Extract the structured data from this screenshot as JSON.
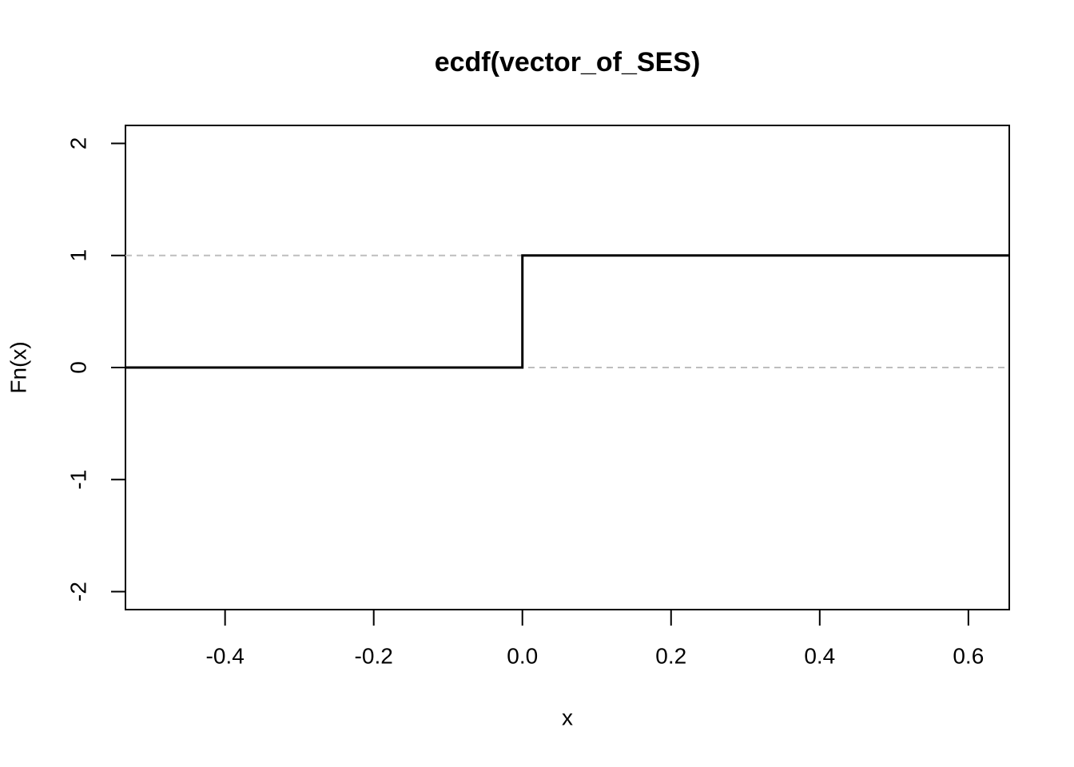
{
  "chart_data": {
    "type": "step",
    "title": "ecdf(vector_of_SES)",
    "x_label": "x",
    "y_label": "Fn(x)",
    "x": [
      -0.534,
      0,
      0,
      0.655
    ],
    "values": [
      0,
      0,
      1,
      1
    ],
    "color": "#000000",
    "reference_lines": [
      0,
      1
    ],
    "reference_color": "#bebebe",
    "xlim": [
      -0.534,
      0.655
    ],
    "xticks": [
      -0.4,
      -0.2,
      {
        "value": 0,
        "label": "0.0"
      },
      0.2,
      0.4,
      0.6
    ],
    "ylim": [
      -2.16,
      2.16
    ],
    "yticks": [
      -2,
      -1,
      0,
      1,
      2
    ],
    "grid": false
  }
}
